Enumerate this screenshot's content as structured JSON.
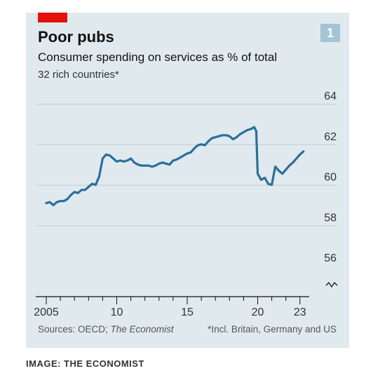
{
  "header": {
    "badge": "1",
    "title": "Poor pubs",
    "subtitle": "Consumer spending on services as % of total",
    "subsubtitle": "32 rich countries*"
  },
  "footer": {
    "source_prefix": "Sources: OECD; ",
    "source_italic": "The Economist",
    "note": "*Incl. Britain, Germany and US"
  },
  "credit": "IMAGE: THE ECONOMIST",
  "colors": {
    "line": "#2a6f9b",
    "brand_red": "#e3120b",
    "background": "#e0e9ee",
    "grid": "#c3ccd1"
  },
  "chart_data": {
    "type": "line",
    "title": "Poor pubs",
    "subtitle": "Consumer spending on services as % of total",
    "ylabel": "",
    "xlabel": "",
    "ylim": [
      56,
      64
    ],
    "xlim": [
      2004.8,
      2023.4
    ],
    "y_ticks": [
      56,
      58,
      60,
      62,
      64
    ],
    "x_tick_labels": [
      {
        "x": 2005,
        "label": "2005"
      },
      {
        "x": 2010,
        "label": "10"
      },
      {
        "x": 2015,
        "label": "15"
      },
      {
        "x": 2020,
        "label": "20"
      },
      {
        "x": 2023,
        "label": "23"
      }
    ],
    "grid": true,
    "axis_break": true,
    "series": [
      {
        "values": [
          [
            2005.0,
            59.1
          ],
          [
            2005.25,
            59.15
          ],
          [
            2005.5,
            59.0
          ],
          [
            2005.75,
            59.15
          ],
          [
            2006.0,
            59.2
          ],
          [
            2006.25,
            59.2
          ],
          [
            2006.5,
            59.3
          ],
          [
            2006.75,
            59.5
          ],
          [
            2007.0,
            59.65
          ],
          [
            2007.25,
            59.6
          ],
          [
            2007.5,
            59.75
          ],
          [
            2007.75,
            59.75
          ],
          [
            2008.0,
            59.9
          ],
          [
            2008.25,
            60.05
          ],
          [
            2008.5,
            60.0
          ],
          [
            2008.75,
            60.4
          ],
          [
            2009.0,
            61.3
          ],
          [
            2009.25,
            61.5
          ],
          [
            2009.5,
            61.45
          ],
          [
            2009.75,
            61.3
          ],
          [
            2010.0,
            61.15
          ],
          [
            2010.25,
            61.2
          ],
          [
            2010.5,
            61.15
          ],
          [
            2010.75,
            61.2
          ],
          [
            2011.0,
            61.3
          ],
          [
            2011.25,
            61.1
          ],
          [
            2011.5,
            61.0
          ],
          [
            2011.75,
            60.95
          ],
          [
            2012.0,
            60.95
          ],
          [
            2012.25,
            60.95
          ],
          [
            2012.5,
            60.9
          ],
          [
            2012.75,
            60.95
          ],
          [
            2013.0,
            61.05
          ],
          [
            2013.25,
            61.1
          ],
          [
            2013.5,
            61.05
          ],
          [
            2013.75,
            61.0
          ],
          [
            2014.0,
            61.2
          ],
          [
            2014.25,
            61.25
          ],
          [
            2014.5,
            61.35
          ],
          [
            2014.75,
            61.45
          ],
          [
            2015.0,
            61.55
          ],
          [
            2015.25,
            61.6
          ],
          [
            2015.5,
            61.8
          ],
          [
            2015.75,
            61.95
          ],
          [
            2016.0,
            62.0
          ],
          [
            2016.25,
            61.95
          ],
          [
            2016.5,
            62.15
          ],
          [
            2016.75,
            62.3
          ],
          [
            2017.0,
            62.35
          ],
          [
            2017.25,
            62.4
          ],
          [
            2017.5,
            62.45
          ],
          [
            2017.75,
            62.45
          ],
          [
            2018.0,
            62.4
          ],
          [
            2018.25,
            62.25
          ],
          [
            2018.5,
            62.35
          ],
          [
            2018.75,
            62.5
          ],
          [
            2019.0,
            62.6
          ],
          [
            2019.25,
            62.7
          ],
          [
            2019.5,
            62.75
          ],
          [
            2019.75,
            62.85
          ],
          [
            2019.9,
            62.65
          ],
          [
            2020.0,
            60.55
          ],
          [
            2020.25,
            60.25
          ],
          [
            2020.5,
            60.35
          ],
          [
            2020.75,
            60.05
          ],
          [
            2021.0,
            60.0
          ],
          [
            2021.25,
            60.9
          ],
          [
            2021.5,
            60.7
          ],
          [
            2021.75,
            60.55
          ],
          [
            2022.0,
            60.75
          ],
          [
            2022.25,
            60.95
          ],
          [
            2022.5,
            61.1
          ],
          [
            2022.75,
            61.3
          ],
          [
            2023.0,
            61.5
          ],
          [
            2023.25,
            61.65
          ]
        ]
      }
    ]
  }
}
